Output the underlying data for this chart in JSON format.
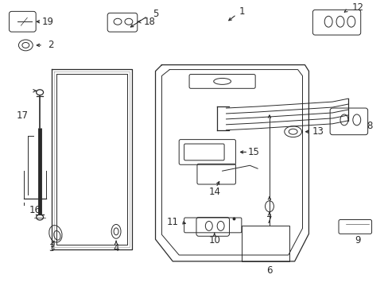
{
  "bg_color": "#ffffff",
  "line_color": "#2a2a2a",
  "fig_width": 4.89,
  "fig_height": 3.6,
  "dpi": 100,
  "label_fontsize": 8.5,
  "arrow_lw": 0.8
}
